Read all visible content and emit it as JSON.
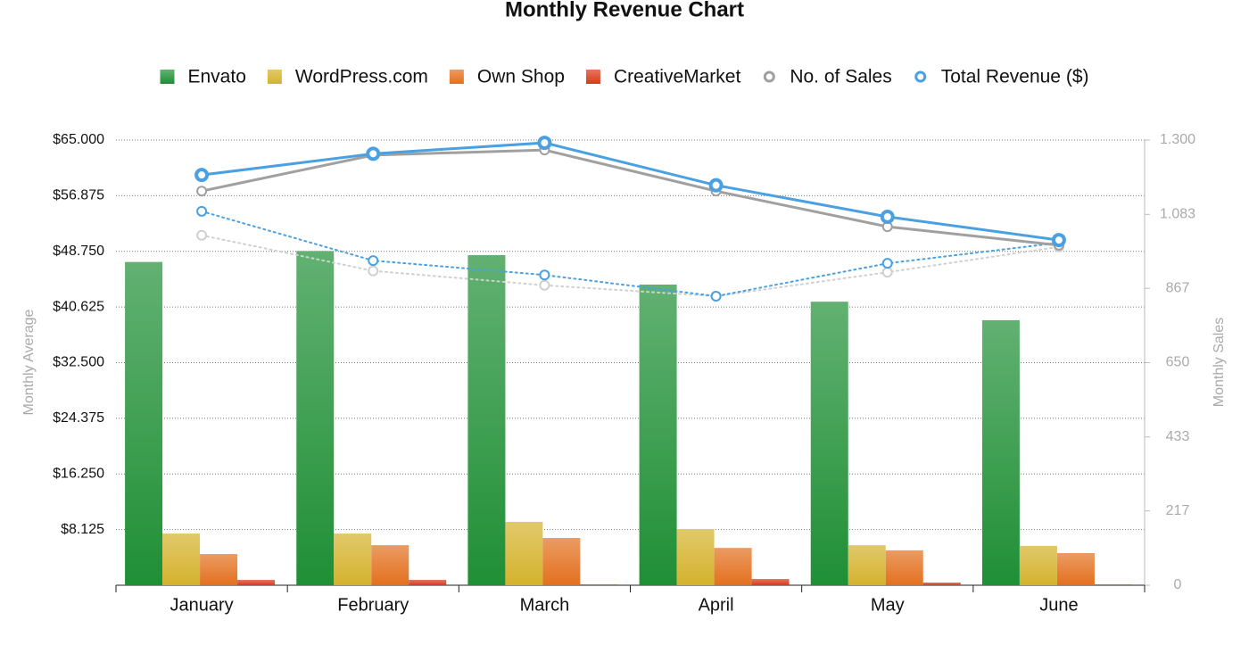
{
  "chart_data": {
    "type": "bar",
    "title": "Monthly Revenue Chart",
    "y_label": "Monthly Average",
    "y2_label": "Monthly Sales",
    "categories": [
      "January",
      "February",
      "March",
      "April",
      "May",
      "June"
    ],
    "ylim": [
      0,
      65000
    ],
    "yticks": [
      {
        "value": 8125,
        "label": "$8.125"
      },
      {
        "value": 16250,
        "label": "$16.250"
      },
      {
        "value": 24375,
        "label": "$24.375"
      },
      {
        "value": 32500,
        "label": "$32.500"
      },
      {
        "value": 40625,
        "label": "$40.625"
      },
      {
        "value": 48750,
        "label": "$48.750"
      },
      {
        "value": 56875,
        "label": "$56.875"
      },
      {
        "value": 65000,
        "label": "$65.000"
      }
    ],
    "y2lim": [
      0,
      1300
    ],
    "y2ticks": [
      0,
      217,
      433,
      650,
      867,
      {
        "value": 1083,
        "label": "1.083"
      },
      {
        "value": 1300,
        "label": "1.300"
      }
    ],
    "grid": true,
    "legend": "top",
    "series": [
      {
        "name": "Envato",
        "type": "bar",
        "color": "#1f8f35",
        "values": [
          47200,
          48800,
          48200,
          43900,
          41400,
          38700
        ]
      },
      {
        "name": "WordPress.com",
        "type": "bar",
        "color": "#d4b22c",
        "values": [
          7550,
          7550,
          9250,
          8200,
          5850,
          5750
        ]
      },
      {
        "name": "Own Shop",
        "type": "bar",
        "color": "#e3701f",
        "values": [
          4550,
          5850,
          6900,
          5450,
          5100,
          4700
        ]
      },
      {
        "name": "CreativeMarket",
        "type": "bar",
        "color": "#d93a1a",
        "values": [
          780,
          780,
          130,
          910,
          390,
          130
        ]
      },
      {
        "name": "No. of Sales",
        "type": "line",
        "axis": "y2",
        "color": "#a0a0a0",
        "values": [
          1151,
          1256,
          1271,
          1151,
          1047,
          993
        ]
      },
      {
        "name": "Total Revenue ($)",
        "type": "line",
        "color": "#4aa0e0",
        "values": [
          59900,
          63000,
          64600,
          58400,
          53800,
          50400
        ]
      },
      {
        "type": "line",
        "style": "dotted",
        "color": "#d0d0d0",
        "values": [
          51100,
          45900,
          43800,
          42200,
          45700,
          49400
        ]
      },
      {
        "type": "line",
        "style": "dotted",
        "color": "#4aa0e0",
        "values": [
          54600,
          47400,
          45300,
          42200,
          47000,
          50000
        ]
      }
    ]
  }
}
